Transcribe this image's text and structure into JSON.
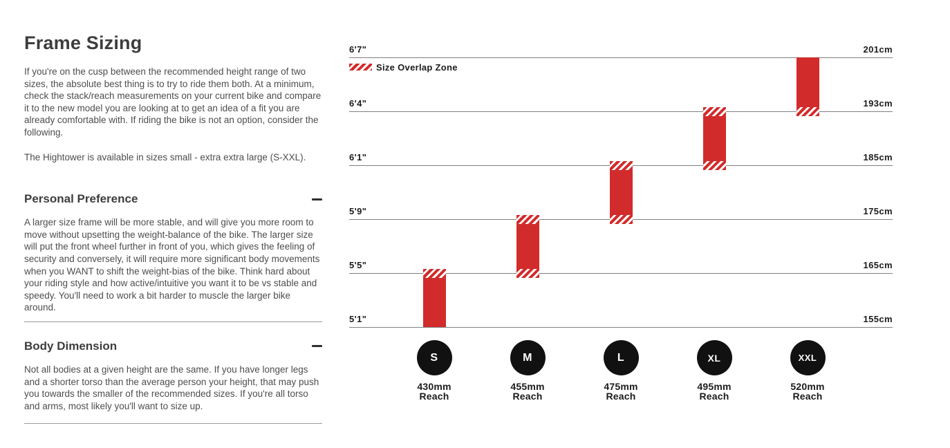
{
  "colors": {
    "accent_red": "#d22b2b",
    "heading_text": "#3d3d3d",
    "body_text": "#4d4d4d",
    "label_text": "#1b1b1b",
    "gridline": "#7f7f7f",
    "circle_bg": "#111111",
    "divider": "#9a9a9a"
  },
  "left_panel": {
    "title": "Frame Sizing",
    "paragraphs": [
      "If you're on the cusp between the recommended height range of two sizes, the absolute best thing is to try to ride them both. At a minimum, check the stack/reach measurements on your current bike and compare it to the new model you are looking at to get an idea of a fit you are already comfortable with. If riding the bike is not an option, consider the following.",
      "The Hightower is available in sizes small - extra extra large (S-XXL)."
    ],
    "sections": [
      {
        "heading": "Personal Preference",
        "toggle_state": "expanded",
        "toggle_glyph": "minus",
        "body": "A larger size frame will be more stable, and will give you more room to move without upsetting the weight-balance of the bike. The larger size will put the front wheel further in front of you, which gives the feeling of security and conversely, it will require more significant body movements when you WANT to shift the weight-bias of the bike. Think hard about your riding style and how active/intuitive you want it to be vs stable and speedy. You'll need to work a bit harder to muscle the larger bike around."
      },
      {
        "heading": "Body Dimension",
        "toggle_state": "expanded",
        "toggle_glyph": "minus",
        "body": "Not all bodies at a given height are the same. If you have longer legs and a shorter torso than the average person your height, that may push you towards the smaller of the recommended sizes. If you're all torso and arms, most likely you'll want to size up."
      }
    ]
  },
  "chart_data": {
    "type": "bar",
    "title": "",
    "legend": {
      "swatch": "red-hatch",
      "label": "Size Overlap Zone"
    },
    "orientation": "vertical-bands",
    "gridlines": [
      {
        "imperial": "6'7\"",
        "metric": "201cm",
        "cm": 201
      },
      {
        "imperial": "6'4\"",
        "metric": "193cm",
        "cm": 193
      },
      {
        "imperial": "6'1\"",
        "metric": "185cm",
        "cm": 185
      },
      {
        "imperial": "5'9\"",
        "metric": "175cm",
        "cm": 175
      },
      {
        "imperial": "5'5\"",
        "metric": "165cm",
        "cm": 165
      },
      {
        "imperial": "5'1\"",
        "metric": "155cm",
        "cm": 155
      }
    ],
    "sizes": [
      {
        "label": "S",
        "reach": "430mm",
        "reach_caption": "Reach",
        "band_top_line": 4,
        "band_bottom_line": 5,
        "hatch_top": true,
        "hatch_bottom": false,
        "height_range_cm": [
          155,
          166
        ]
      },
      {
        "label": "M",
        "reach": "455mm",
        "reach_caption": "Reach",
        "band_top_line": 3,
        "band_bottom_line": 4,
        "hatch_top": true,
        "hatch_bottom": true,
        "height_range_cm": [
          164,
          176
        ]
      },
      {
        "label": "L",
        "reach": "475mm",
        "reach_caption": "Reach",
        "band_top_line": 2,
        "band_bottom_line": 3,
        "hatch_top": true,
        "hatch_bottom": true,
        "height_range_cm": [
          174,
          186
        ]
      },
      {
        "label": "XL",
        "reach": "495mm",
        "reach_caption": "Reach",
        "band_top_line": 1,
        "band_bottom_line": 2,
        "hatch_top": true,
        "hatch_bottom": true,
        "height_range_cm": [
          184,
          194
        ]
      },
      {
        "label": "XXL",
        "reach": "520mm",
        "reach_caption": "Reach",
        "band_top_line": 0,
        "band_bottom_line": 1,
        "hatch_top": false,
        "hatch_bottom": true,
        "height_range_cm": [
          192,
          201
        ]
      }
    ]
  }
}
